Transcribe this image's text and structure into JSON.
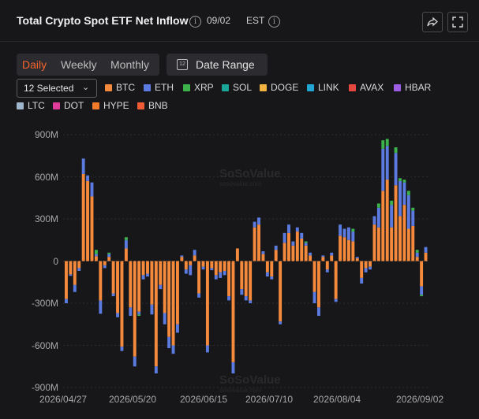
{
  "header": {
    "title": "Total Crypto Spot ETF Net Inflow",
    "date": "09/02",
    "timezone": "EST"
  },
  "tabs": [
    {
      "label": "Daily",
      "active": true
    },
    {
      "label": "Weekly",
      "active": false
    },
    {
      "label": "Monthly",
      "active": false
    }
  ],
  "date_range_label": "Date Range",
  "calendar_day": "12",
  "selector": {
    "label": "12 Selected"
  },
  "watermark": {
    "brand": "SoSoValue",
    "url": "sosovalue.com"
  },
  "legend": [
    {
      "name": "BTC",
      "color": "#f58a3c"
    },
    {
      "name": "ETH",
      "color": "#5b7be0"
    },
    {
      "name": "XRP",
      "color": "#3cb44b"
    },
    {
      "name": "SOL",
      "color": "#1aa79a"
    },
    {
      "name": "DOGE",
      "color": "#f2b441"
    },
    {
      "name": "LINK",
      "color": "#22a7d4"
    },
    {
      "name": "AVAX",
      "color": "#e5483f"
    },
    {
      "name": "HBAR",
      "color": "#9c5de3"
    },
    {
      "name": "LTC",
      "color": "#9fb6cc"
    },
    {
      "name": "DOT",
      "color": "#e23c9a"
    },
    {
      "name": "HYPE",
      "color": "#f27a2a"
    },
    {
      "name": "BNB",
      "color": "#f05a34"
    }
  ],
  "chart_data": {
    "type": "bar",
    "stacked": true,
    "ylim": [
      -900,
      900
    ],
    "y_unit": "M",
    "y_ticks": [
      "900M",
      "600M",
      "300M",
      "0",
      "-300M",
      "-600M",
      "-900M"
    ],
    "x_tick_labels": [
      "2026/04/27",
      "2026/05/20",
      "2026/06/15",
      "2026/07/10",
      "2026/08/04",
      "2026/09/02"
    ],
    "bars": [
      {
        "btc": -270,
        "eth": -30,
        "other": 0
      },
      {
        "btc": -95,
        "eth": -10,
        "other": 0
      },
      {
        "btc": -170,
        "eth": -50,
        "other": 0
      },
      {
        "btc": -50,
        "eth": -20,
        "other": 0
      },
      {
        "btc": 620,
        "eth": 110,
        "other": 0
      },
      {
        "btc": 570,
        "eth": 40,
        "other": 0
      },
      {
        "btc": 460,
        "eth": 100,
        "other": 0
      },
      {
        "btc": 35,
        "eth": 15,
        "other": 30
      },
      {
        "btc": -280,
        "eth": -95,
        "other": 0
      },
      {
        "btc": -30,
        "eth": -20,
        "other": 0
      },
      {
        "btc": 30,
        "eth": 20,
        "other": 10
      },
      {
        "btc": -230,
        "eth": -20,
        "other": 0
      },
      {
        "btc": -370,
        "eth": -30,
        "other": 0
      },
      {
        "btc": -610,
        "eth": -30,
        "other": 0
      },
      {
        "btc": 90,
        "eth": 60,
        "other": 20
      },
      {
        "btc": -330,
        "eth": -60,
        "other": 0
      },
      {
        "btc": -680,
        "eth": -70,
        "other": 0
      },
      {
        "btc": -360,
        "eth": -20,
        "other": 10
      },
      {
        "btc": -100,
        "eth": -30,
        "other": 0
      },
      {
        "btc": -90,
        "eth": -20,
        "other": 0
      },
      {
        "btc": -310,
        "eth": -70,
        "other": 0
      },
      {
        "btc": -750,
        "eth": -50,
        "other": 0
      },
      {
        "btc": -170,
        "eth": -30,
        "other": 0
      },
      {
        "btc": -370,
        "eth": -80,
        "other": 0
      },
      {
        "btc": -540,
        "eth": -80,
        "other": 0
      },
      {
        "btc": -600,
        "eth": -60,
        "other": 0
      },
      {
        "btc": -450,
        "eth": -60,
        "other": 0
      },
      {
        "btc": 30,
        "eth": 10,
        "other": 0
      },
      {
        "btc": -60,
        "eth": -30,
        "other": 0
      },
      {
        "btc": -30,
        "eth": -70,
        "other": 0
      },
      {
        "btc": 40,
        "eth": 40,
        "other": 0
      },
      {
        "btc": -230,
        "eth": -30,
        "other": 0
      },
      {
        "btc": -40,
        "eth": -20,
        "other": 0
      },
      {
        "btc": -600,
        "eth": -50,
        "other": 0
      },
      {
        "btc": -50,
        "eth": -15,
        "other": 0
      },
      {
        "btc": -100,
        "eth": -30,
        "other": 0
      },
      {
        "btc": -80,
        "eth": -40,
        "other": 0
      },
      {
        "btc": -70,
        "eth": -30,
        "other": 0
      },
      {
        "btc": -250,
        "eth": -30,
        "other": 0
      },
      {
        "btc": -720,
        "eth": -80,
        "other": 0
      },
      {
        "btc": 90,
        "eth": 0,
        "other": 0
      },
      {
        "btc": -200,
        "eth": -40,
        "other": 0
      },
      {
        "btc": -250,
        "eth": -30,
        "other": 0
      },
      {
        "btc": -280,
        "eth": -20,
        "other": 0
      },
      {
        "btc": 240,
        "eth": 40,
        "other": 0
      },
      {
        "btc": 260,
        "eth": 50,
        "other": 0
      },
      {
        "btc": 50,
        "eth": 20,
        "other": 0
      },
      {
        "btc": -80,
        "eth": -30,
        "other": 0
      },
      {
        "btc": -110,
        "eth": -20,
        "other": 0
      },
      {
        "btc": 80,
        "eth": 30,
        "other": 0
      },
      {
        "btc": -430,
        "eth": -20,
        "other": 0
      },
      {
        "btc": 130,
        "eth": 70,
        "other": 0
      },
      {
        "btc": 200,
        "eth": 60,
        "other": 0
      },
      {
        "btc": 110,
        "eth": 30,
        "other": 0
      },
      {
        "btc": 210,
        "eth": 30,
        "other": 0
      },
      {
        "btc": 160,
        "eth": 40,
        "other": 0
      },
      {
        "btc": 110,
        "eth": 20,
        "other": 10
      },
      {
        "btc": 40,
        "eth": 20,
        "other": 0
      },
      {
        "btc": -220,
        "eth": -80,
        "other": 0
      },
      {
        "btc": -330,
        "eth": -60,
        "other": 0
      },
      {
        "btc": 30,
        "eth": 10,
        "other": 0
      },
      {
        "btc": -60,
        "eth": -20,
        "other": 0
      },
      {
        "btc": 40,
        "eth": 20,
        "other": 0
      },
      {
        "btc": -270,
        "eth": -20,
        "other": 0
      },
      {
        "btc": 180,
        "eth": 80,
        "other": 0
      },
      {
        "btc": 170,
        "eth": 60,
        "other": 0
      },
      {
        "btc": 150,
        "eth": 90,
        "other": 0
      },
      {
        "btc": 140,
        "eth": 70,
        "other": 20
      },
      {
        "btc": 20,
        "eth": 10,
        "other": 0
      },
      {
        "btc": -120,
        "eth": -40,
        "other": 0
      },
      {
        "btc": -50,
        "eth": -30,
        "other": 0
      },
      {
        "btc": -40,
        "eth": -20,
        "other": 0
      },
      {
        "btc": 260,
        "eth": 60,
        "other": 0
      },
      {
        "btc": 240,
        "eth": 140,
        "other": 30
      },
      {
        "btc": 500,
        "eth": 300,
        "other": 60
      },
      {
        "btc": 580,
        "eth": 240,
        "other": 50
      },
      {
        "btc": 240,
        "eth": 160,
        "other": 30
      },
      {
        "btc": 540,
        "eth": 230,
        "other": 40
      },
      {
        "btc": 320,
        "eth": 250,
        "other": 20
      },
      {
        "btc": 400,
        "eth": 160,
        "other": 20
      },
      {
        "btc": 230,
        "eth": 240,
        "other": 30
      },
      {
        "btc": 250,
        "eth": 110,
        "other": 20
      },
      {
        "btc": 30,
        "eth": 30,
        "other": 20
      },
      {
        "btc": -180,
        "eth": -60,
        "other": 10
      },
      {
        "btc": 60,
        "eth": 40,
        "other": 0
      }
    ]
  }
}
